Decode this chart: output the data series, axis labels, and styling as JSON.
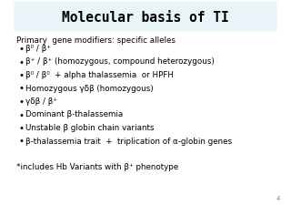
{
  "title": "Molecular basis of TI",
  "title_bg": "#e8f4f8",
  "bg_color": "#ffffff",
  "title_fontsize": 10.5,
  "body_fontsize": 6.3,
  "header_text": "Primary  gene modifiers: specific alleles",
  "bullets": [
    "β⁰ / β⁺",
    "β⁺ / β⁺ (homozygous, compound heterozygous)",
    "β⁰ / β⁰  + alpha thalassemia  or HPFH",
    "Homozygous γδβ (homozygous)",
    "γδβ / β⁺",
    "Dominant β-thalassemia",
    "Unstable β globin chain variants",
    "β-thalassemia trait  +  triplication of α-globin genes"
  ],
  "footnote": "*includes Hb Variants with β⁺ phenotype",
  "page_num": "4"
}
